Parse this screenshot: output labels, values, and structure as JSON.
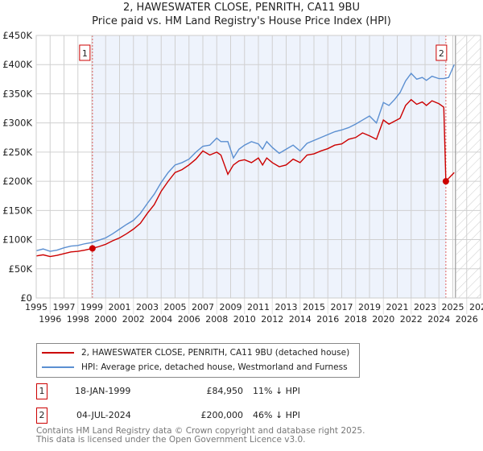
{
  "title": "2, HAWESWATER CLOSE, PENRITH, CA11 9BU",
  "subtitle": "Price paid vs. HM Land Registry's House Price Index (HPI)",
  "chart_data": {
    "type": "line",
    "title": "2, HAWESWATER CLOSE, PENRITH, CA11 9BU",
    "subtitle": "Price paid vs. HM Land Registry's House Price Index (HPI)",
    "xlim": [
      1995,
      2027
    ],
    "ylim": [
      0,
      450000
    ],
    "x_ticks": [
      "1995",
      "1996",
      "1997",
      "1998",
      "1999",
      "2000",
      "2001",
      "2002",
      "2003",
      "2004",
      "2005",
      "2006",
      "2007",
      "2008",
      "2009",
      "2010",
      "2011",
      "2012",
      "2013",
      "2014",
      "2015",
      "2016",
      "2017",
      "2018",
      "2019",
      "2020",
      "2021",
      "2022",
      "2023",
      "2024",
      "2025",
      "2026",
      "2027"
    ],
    "y_ticks": [
      {
        "v": 0,
        "label": "£0"
      },
      {
        "v": 50000,
        "label": "£50K"
      },
      {
        "v": 100000,
        "label": "£100K"
      },
      {
        "v": 150000,
        "label": "£150K"
      },
      {
        "v": 200000,
        "label": "£200K"
      },
      {
        "v": 250000,
        "label": "£250K"
      },
      {
        "v": 300000,
        "label": "£300K"
      },
      {
        "v": 350000,
        "label": "£350K"
      },
      {
        "v": 400000,
        "label": "£400K"
      },
      {
        "v": 450000,
        "label": "£450K"
      }
    ],
    "grid": true,
    "shaded_period": [
      1999.05,
      2024.5
    ],
    "hatched_from": 2025.25,
    "series": [
      {
        "name": "2, HAWESWATER CLOSE, PENRITH, CA11 9BU (detached house)",
        "color": "#cc0000",
        "x": [
          1995,
          1995.5,
          1996,
          1996.5,
          1997,
          1997.5,
          1998,
          1998.5,
          1999.05,
          1999.5,
          2000,
          2000.5,
          2001,
          2001.5,
          2002,
          2002.5,
          2003,
          2003.5,
          2004,
          2004.5,
          2005,
          2005.5,
          2006,
          2006.5,
          2007,
          2007.5,
          2008,
          2008.3,
          2008.8,
          2009.2,
          2009.6,
          2010,
          2010.5,
          2011,
          2011.3,
          2011.6,
          2012,
          2012.5,
          2013,
          2013.5,
          2014,
          2014.5,
          2015,
          2015.5,
          2016,
          2016.5,
          2017,
          2017.5,
          2018,
          2018.5,
          2019,
          2019.5,
          2020,
          2020.4,
          2020.8,
          2021.2,
          2021.6,
          2022,
          2022.4,
          2022.8,
          2023.1,
          2023.5,
          2024,
          2024.35,
          2024.5,
          2025.1
        ],
        "y": [
          72000,
          74000,
          71000,
          73000,
          76000,
          79000,
          80000,
          82000,
          84950,
          88000,
          92000,
          98000,
          103000,
          110000,
          118000,
          128000,
          145000,
          160000,
          183000,
          200000,
          215000,
          220000,
          228000,
          238000,
          252000,
          245000,
          250000,
          245000,
          212000,
          228000,
          235000,
          237000,
          232000,
          240000,
          228000,
          240000,
          232000,
          225000,
          228000,
          238000,
          232000,
          245000,
          247000,
          252000,
          256000,
          262000,
          264000,
          272000,
          275000,
          283000,
          278000,
          272000,
          305000,
          298000,
          303000,
          308000,
          330000,
          340000,
          332000,
          336000,
          330000,
          338000,
          333000,
          327000,
          200000,
          215000
        ]
      },
      {
        "name": "HPI: Average price, detached house, Westmorland and Furness",
        "color": "#5b8fd1",
        "x": [
          1995,
          1995.5,
          1996,
          1996.5,
          1997,
          1997.5,
          1998,
          1998.5,
          1999,
          1999.5,
          2000,
          2000.5,
          2001,
          2001.5,
          2002,
          2002.5,
          2003,
          2003.5,
          2004,
          2004.5,
          2005,
          2005.5,
          2006,
          2006.5,
          2007,
          2007.5,
          2008,
          2008.3,
          2008.8,
          2009.2,
          2009.6,
          2010,
          2010.5,
          2011,
          2011.3,
          2011.6,
          2012,
          2012.5,
          2013,
          2013.5,
          2014,
          2014.5,
          2015,
          2015.5,
          2016,
          2016.5,
          2017,
          2017.5,
          2018,
          2018.5,
          2019,
          2019.5,
          2020,
          2020.4,
          2020.8,
          2021.2,
          2021.6,
          2022,
          2022.4,
          2022.8,
          2023.1,
          2023.5,
          2024,
          2024.35,
          2024.7,
          2025.1
        ],
        "y": [
          81000,
          84000,
          80000,
          82000,
          86000,
          89000,
          90000,
          93000,
          95000,
          99000,
          103000,
          110000,
          118000,
          126000,
          133000,
          145000,
          162000,
          178000,
          198000,
          215000,
          228000,
          232000,
          238000,
          250000,
          260000,
          262000,
          274000,
          268000,
          268000,
          240000,
          255000,
          262000,
          268000,
          264000,
          255000,
          268000,
          258000,
          248000,
          255000,
          262000,
          252000,
          265000,
          270000,
          275000,
          280000,
          285000,
          288000,
          292000,
          298000,
          305000,
          312000,
          300000,
          335000,
          330000,
          340000,
          352000,
          372000,
          385000,
          375000,
          378000,
          373000,
          380000,
          376000,
          376000,
          378000,
          400000
        ]
      }
    ],
    "annotations": [
      {
        "label": "1",
        "x": 1999.05,
        "y": 84950
      },
      {
        "label": "2",
        "x": 2024.5,
        "y": 200000
      }
    ]
  },
  "legend": {
    "items": [
      "2, HAWESWATER CLOSE, PENRITH, CA11 9BU (detached house)",
      "HPI: Average price, detached house, Westmorland and Furness"
    ]
  },
  "transactions": [
    {
      "num": "1",
      "date": "18-JAN-1999",
      "price": "£84,950",
      "hpi": "11% ↓ HPI"
    },
    {
      "num": "2",
      "date": "04-JUL-2024",
      "price": "£200,000",
      "hpi": "46% ↓ HPI"
    }
  ],
  "footer": {
    "line1": "Contains HM Land Registry data © Crown copyright and database right 2025.",
    "line2": "This data is licensed under the Open Government Licence v3.0."
  }
}
